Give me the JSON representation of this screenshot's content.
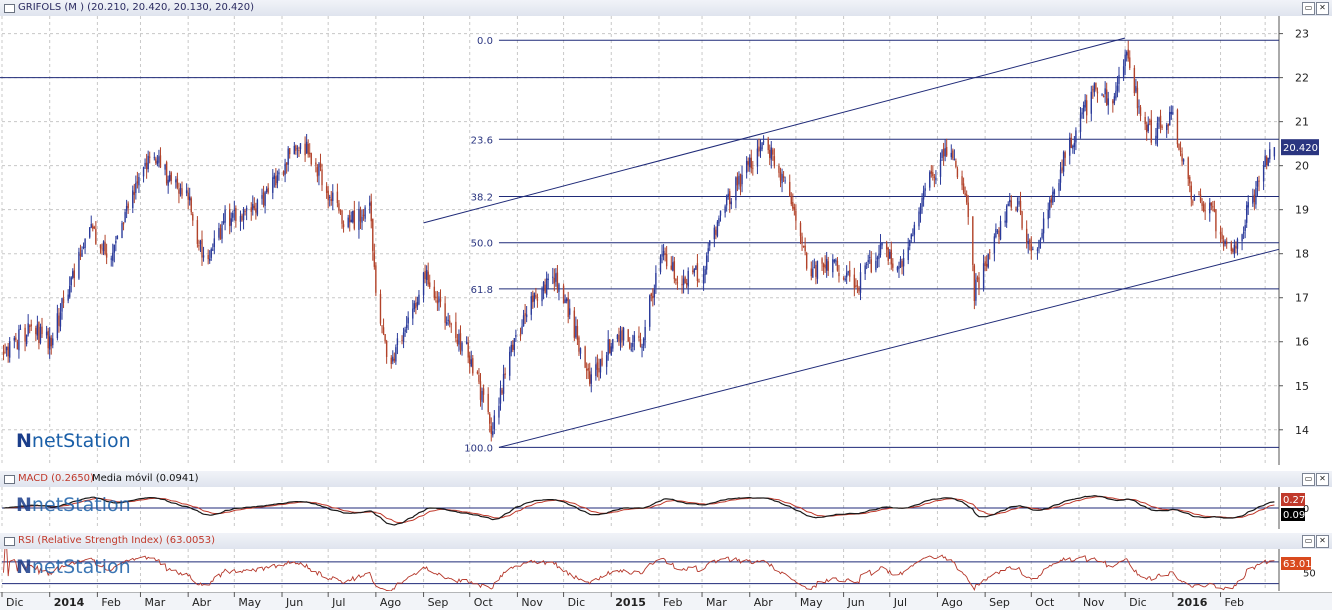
{
  "header": {
    "title": "GRIFOLS (M )",
    "ohlc": "(20.210, 20.420, 20.130, 20.420)",
    "last_price": "20.420"
  },
  "macd_panel": {
    "title": "MACD (0.2650)",
    "signal_label": "Media móvil (0.0941)",
    "macd_value": "0.27",
    "signal_value": "0.09",
    "zero_label": "0"
  },
  "rsi_panel": {
    "title": "RSI (Relative Strength Index) (63.0053)",
    "value": "63.01",
    "mid_label": "50"
  },
  "logo": {
    "bold": "N",
    "text": "netStation"
  },
  "window_buttons": {
    "minimize": "▭",
    "close": "✕"
  },
  "fib_labels": [
    "0.0",
    "23.6",
    "38.2",
    "50.0",
    "61.8",
    "100.0"
  ],
  "colors": {
    "bull": "#2a3a9a",
    "bear": "#b2432a",
    "channel": "#1f2a78",
    "macd": "#1a1a1a",
    "signal": "#c0392b",
    "rsi": "#b5372a",
    "grid": "#c8c8c8",
    "price_box": "#2a3580"
  },
  "x_axis": {
    "labels": [
      "Dic",
      "2014",
      "Feb",
      "Mar",
      "Abr",
      "May",
      "Jun",
      "Jul",
      "Ago",
      "Sep",
      "Oct",
      "Nov",
      "Dic",
      "2015",
      "Feb",
      "Mar",
      "Abr",
      "May",
      "Jun",
      "Jul",
      "Ago",
      "Sep",
      "Oct",
      "Nov",
      "Dic",
      "2016",
      "Feb"
    ]
  },
  "chart_data": [
    {
      "type": "candlestick",
      "title": "GRIFOLS (M )",
      "x_range": [
        "2013-12",
        "2016-03"
      ],
      "ylim": [
        13.2,
        23.4
      ],
      "y_ticks": [
        14,
        15,
        16,
        17,
        18,
        19,
        20,
        21,
        22,
        23
      ],
      "last": {
        "open": 20.21,
        "high": 20.42,
        "low": 20.13,
        "close": 20.42
      },
      "close_path": [
        {
          "x": "2013-12-02",
          "y": 15.8
        },
        {
          "x": "2013-12-20",
          "y": 16.3
        },
        {
          "x": "2014-01-02",
          "y": 16.0
        },
        {
          "x": "2014-01-15",
          "y": 17.5
        },
        {
          "x": "2014-01-28",
          "y": 18.6
        },
        {
          "x": "2014-02-10",
          "y": 17.9
        },
        {
          "x": "2014-02-25",
          "y": 19.4
        },
        {
          "x": "2014-03-08",
          "y": 20.2
        },
        {
          "x": "2014-03-20",
          "y": 19.7
        },
        {
          "x": "2014-04-01",
          "y": 19.4
        },
        {
          "x": "2014-04-12",
          "y": 17.6
        },
        {
          "x": "2014-04-25",
          "y": 18.8
        },
        {
          "x": "2014-05-10",
          "y": 18.9
        },
        {
          "x": "2014-05-28",
          "y": 19.6
        },
        {
          "x": "2014-06-08",
          "y": 20.5
        },
        {
          "x": "2014-06-18",
          "y": 20.4
        },
        {
          "x": "2014-07-01",
          "y": 19.4
        },
        {
          "x": "2014-07-12",
          "y": 18.6
        },
        {
          "x": "2014-07-28",
          "y": 19.1
        },
        {
          "x": "2014-08-03",
          "y": 16.4
        },
        {
          "x": "2014-08-10",
          "y": 15.5
        },
        {
          "x": "2014-08-22",
          "y": 16.4
        },
        {
          "x": "2014-09-02",
          "y": 17.5
        },
        {
          "x": "2014-09-15",
          "y": 16.5
        },
        {
          "x": "2014-10-01",
          "y": 15.7
        },
        {
          "x": "2014-10-15",
          "y": 14.0
        },
        {
          "x": "2014-10-28",
          "y": 15.8
        },
        {
          "x": "2014-11-12",
          "y": 17.0
        },
        {
          "x": "2014-11-25",
          "y": 17.5
        },
        {
          "x": "2014-12-05",
          "y": 16.6
        },
        {
          "x": "2014-12-18",
          "y": 15.1
        },
        {
          "x": "2015-01-05",
          "y": 16.2
        },
        {
          "x": "2015-01-20",
          "y": 15.9
        },
        {
          "x": "2015-02-02",
          "y": 18.0
        },
        {
          "x": "2015-02-15",
          "y": 17.4
        },
        {
          "x": "2015-03-01",
          "y": 17.6
        },
        {
          "x": "2015-03-15",
          "y": 19.1
        },
        {
          "x": "2015-04-01",
          "y": 20.0
        },
        {
          "x": "2015-04-10",
          "y": 20.6
        },
        {
          "x": "2015-04-25",
          "y": 19.6
        },
        {
          "x": "2015-05-10",
          "y": 17.6
        },
        {
          "x": "2015-05-25",
          "y": 17.7
        },
        {
          "x": "2015-06-10",
          "y": 17.3
        },
        {
          "x": "2015-06-25",
          "y": 18.1
        },
        {
          "x": "2015-07-10",
          "y": 17.7
        },
        {
          "x": "2015-07-25",
          "y": 19.6
        },
        {
          "x": "2015-08-08",
          "y": 20.4
        },
        {
          "x": "2015-08-20",
          "y": 19.3
        },
        {
          "x": "2015-08-25",
          "y": 17.1
        },
        {
          "x": "2015-09-05",
          "y": 18.2
        },
        {
          "x": "2015-09-20",
          "y": 19.3
        },
        {
          "x": "2015-10-02",
          "y": 18.0
        },
        {
          "x": "2015-10-20",
          "y": 19.9
        },
        {
          "x": "2015-11-01",
          "y": 21.0
        },
        {
          "x": "2015-11-12",
          "y": 21.8
        },
        {
          "x": "2015-11-22",
          "y": 21.5
        },
        {
          "x": "2015-12-01",
          "y": 22.6
        },
        {
          "x": "2015-12-08",
          "y": 21.6
        },
        {
          "x": "2015-12-18",
          "y": 20.7
        },
        {
          "x": "2016-01-01",
          "y": 21.2
        },
        {
          "x": "2016-01-12",
          "y": 19.4
        },
        {
          "x": "2016-01-25",
          "y": 19.0
        },
        {
          "x": "2016-02-08",
          "y": 17.9
        },
        {
          "x": "2016-02-20",
          "y": 19.1
        },
        {
          "x": "2016-03-05",
          "y": 20.42
        }
      ],
      "horizontal_lines": [
        22.0
      ],
      "fibonacci_retracement": {
        "levels": [
          {
            "label": "0.0",
            "price": 22.85
          },
          {
            "label": "23.6",
            "price": 20.6
          },
          {
            "label": "38.2",
            "price": 19.3
          },
          {
            "label": "50.0",
            "price": 18.25
          },
          {
            "label": "61.8",
            "price": 17.2
          },
          {
            "label": "100.0",
            "price": 13.6
          }
        ]
      },
      "channel_lines": [
        {
          "from": {
            "x": "2014-10-20",
            "y": 13.6
          },
          "to": {
            "x": "2016-03-10",
            "y": 18.1
          }
        },
        {
          "from": {
            "x": "2014-09-01",
            "y": 18.7
          },
          "to": {
            "x": "2015-12-01",
            "y": 22.9
          }
        }
      ]
    },
    {
      "type": "line",
      "title": "MACD (0.2650)",
      "series": [
        {
          "name": "MACD (0.2650)",
          "last": 0.27
        },
        {
          "name": "Media móvil (0.0941)",
          "last": 0.09
        }
      ],
      "zero_line": 0
    },
    {
      "type": "line",
      "title": "RSI (Relative Strength Index) (63.0053)",
      "series": [
        {
          "name": "RSI",
          "last": 63.01
        }
      ],
      "reference_level": 50
    }
  ]
}
